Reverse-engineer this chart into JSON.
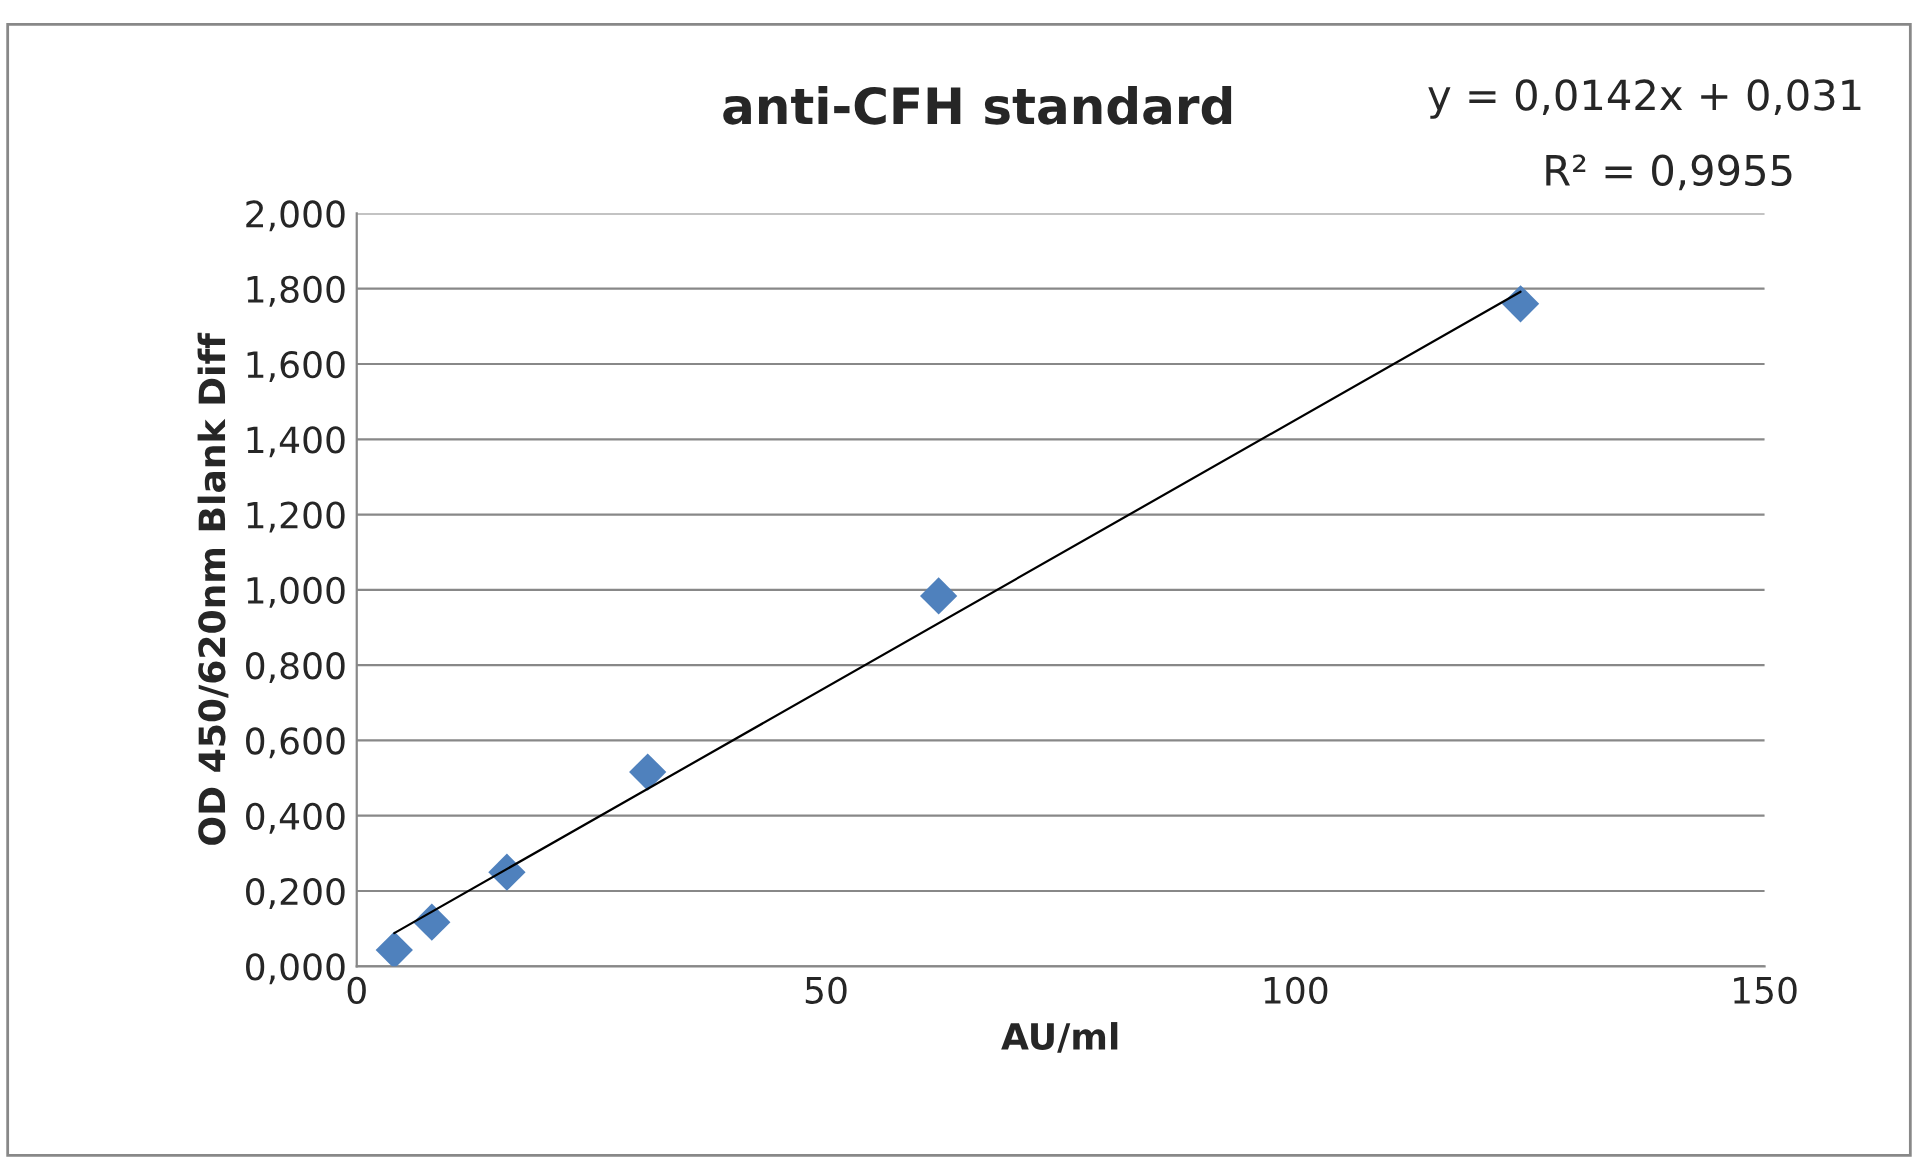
{
  "chart_data": {
    "type": "scatter",
    "title": "anti-CFH standard",
    "xlabel": "AU/ml",
    "ylabel": "OD 450/620nm Blank Diff",
    "annotations": [
      "y = 0,0142x + 0,031",
      "R² = 0,9955"
    ],
    "x": [
      4,
      8,
      16,
      31,
      62,
      124
    ],
    "series": [
      {
        "color": "#4f81bd",
        "values": [
          0.043,
          0.117,
          0.25,
          0.516,
          0.984,
          1.76
        ],
        "marker": "diamond"
      },
      {
        "type": "line",
        "color": "#000000",
        "x": [
          4,
          124
        ],
        "values": [
          0.088,
          1.792
        ],
        "marker": "none"
      }
    ],
    "xlim": [
      0,
      150
    ],
    "xticks": [
      0,
      50,
      100,
      150
    ],
    "ylim": [
      0,
      2
    ],
    "yticks": [
      {
        "value": 0,
        "label": "0,000"
      },
      {
        "value": 0.2,
        "label": "0,200"
      },
      {
        "value": 0.4,
        "label": "0,400"
      },
      {
        "value": 0.6,
        "label": "0,600"
      },
      {
        "value": 0.8,
        "label": "0,800"
      },
      {
        "value": 1.0,
        "label": "1,000"
      },
      {
        "value": 1.2,
        "label": "1,200"
      },
      {
        "value": 1.4,
        "label": "1,400"
      },
      {
        "value": 1.6,
        "label": "1,600"
      },
      {
        "value": 1.8,
        "label": "1,800"
      },
      {
        "value": 2.0,
        "label": "2,000"
      }
    ],
    "grid": "y"
  }
}
